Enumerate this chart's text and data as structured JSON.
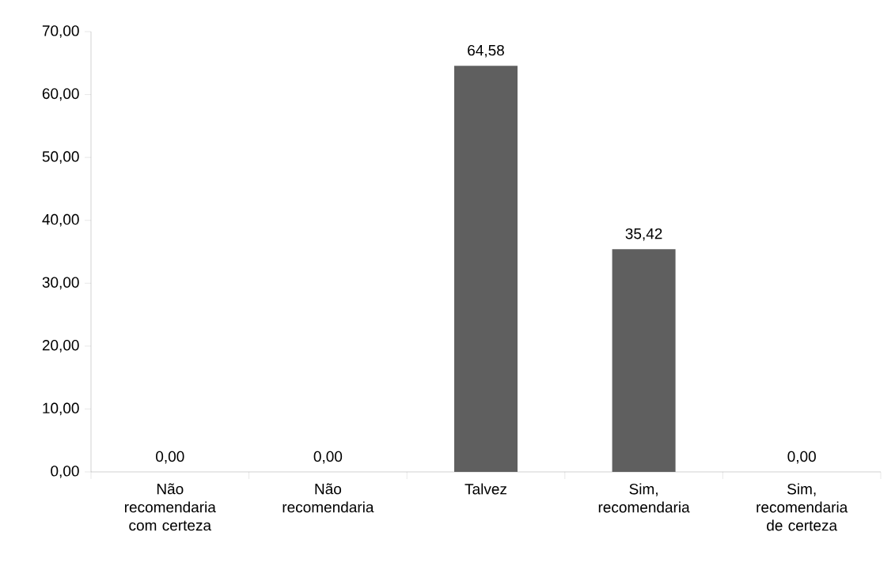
{
  "chart_data": {
    "type": "bar",
    "categories": [
      "Não recomendaria com certeza",
      "Não recomendaria",
      "Talvez",
      "Sim, recomendaria",
      "Sim, recomendaria de certeza"
    ],
    "values": [
      0,
      0,
      64.58,
      35.42,
      0
    ],
    "value_labels": [
      "0,00",
      "0,00",
      "64,58",
      "35,42",
      "0,00"
    ],
    "color": "#5f5f5f",
    "ylim": [
      0,
      70
    ],
    "yticks": [
      {
        "value": 0,
        "label": "0,00"
      },
      {
        "value": 10,
        "label": "10,00"
      },
      {
        "value": 20,
        "label": "20,00"
      },
      {
        "value": 30,
        "label": "30,00"
      },
      {
        "value": 40,
        "label": "40,00"
      },
      {
        "value": 50,
        "label": "50,00"
      },
      {
        "value": 60,
        "label": "60,00"
      },
      {
        "value": 70,
        "label": "70,00"
      }
    ],
    "grid": false
  }
}
